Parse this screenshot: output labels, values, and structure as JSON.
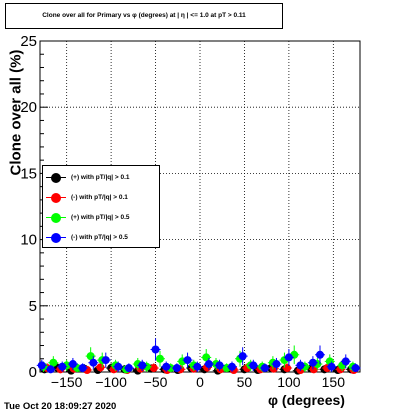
{
  "title": "Clone  over all for Primary vs φ (degrees) at | η | <= 1.0 at pT > 0.11",
  "timestamp": "Tue Oct 20 18:09:27 2020",
  "chart_data": {
    "type": "scatter",
    "xlabel": "φ (degrees)",
    "ylabel": "Clone  over all (%)",
    "xlim": [
      -180,
      180
    ],
    "ylim": [
      0,
      25
    ],
    "xticks": [
      -150,
      -100,
      -50,
      0,
      50,
      100,
      150
    ],
    "yticks": [
      0,
      5,
      10,
      15,
      20,
      25
    ],
    "grid": true,
    "legend_position": "left-middle",
    "series": [
      {
        "name": "(+) with pT/|q| > 0.1",
        "color": "#000000",
        "points": [
          [
            -175,
            0.2
          ],
          [
            -160,
            0.3
          ],
          [
            -145,
            0.1
          ],
          [
            -130,
            0.25
          ],
          [
            -115,
            0.15
          ],
          [
            -100,
            0.3
          ],
          [
            -85,
            0.2
          ],
          [
            -70,
            0.1
          ],
          [
            -55,
            0.25
          ],
          [
            -40,
            0.2
          ],
          [
            -25,
            0.15
          ],
          [
            -10,
            0.3
          ],
          [
            5,
            0.2
          ],
          [
            20,
            0.1
          ],
          [
            35,
            0.25
          ],
          [
            50,
            0.2
          ],
          [
            65,
            0.15
          ],
          [
            80,
            0.3
          ],
          [
            95,
            0.2
          ],
          [
            110,
            0.1
          ],
          [
            125,
            0.25
          ],
          [
            140,
            0.2
          ],
          [
            155,
            0.15
          ],
          [
            170,
            0.2
          ]
        ]
      },
      {
        "name": "(-) with pT/|q| > 0.1",
        "color": "#ff0000",
        "points": [
          [
            -172,
            0.3
          ],
          [
            -157,
            0.2
          ],
          [
            -142,
            0.25
          ],
          [
            -127,
            0.15
          ],
          [
            -112,
            0.35
          ],
          [
            -97,
            0.2
          ],
          [
            -82,
            0.15
          ],
          [
            -67,
            0.25
          ],
          [
            -52,
            0.3
          ],
          [
            -37,
            0.15
          ],
          [
            -22,
            0.2
          ],
          [
            -7,
            0.25
          ],
          [
            8,
            0.35
          ],
          [
            23,
            0.2
          ],
          [
            38,
            0.15
          ],
          [
            53,
            0.3
          ],
          [
            68,
            0.2
          ],
          [
            83,
            0.25
          ],
          [
            98,
            0.3
          ],
          [
            113,
            0.15
          ],
          [
            128,
            0.2
          ],
          [
            143,
            0.3
          ],
          [
            158,
            0.2
          ],
          [
            173,
            0.15
          ]
        ]
      },
      {
        "name": "(+) with pT/|q| > 0.5",
        "color": "#00ff00",
        "points": [
          [
            -176,
            0.4
          ],
          [
            -165,
            0.7
          ],
          [
            -150,
            0.5
          ],
          [
            -138,
            0.3
          ],
          [
            -123,
            1.2
          ],
          [
            -110,
            0.9
          ],
          [
            -95,
            0.5
          ],
          [
            -83,
            0.2
          ],
          [
            -70,
            0.6
          ],
          [
            -60,
            0.4
          ],
          [
            -45,
            1.0
          ],
          [
            -33,
            0.3
          ],
          [
            -20,
            0.8
          ],
          [
            -7,
            0.5
          ],
          [
            7,
            1.1
          ],
          [
            18,
            0.6
          ],
          [
            30,
            0.3
          ],
          [
            45,
            1.0
          ],
          [
            57,
            0.5
          ],
          [
            70,
            0.4
          ],
          [
            82,
            0.7
          ],
          [
            95,
            0.9
          ],
          [
            106,
            1.3
          ],
          [
            118,
            0.4
          ],
          [
            132,
            0.6
          ],
          [
            146,
            0.8
          ],
          [
            160,
            0.5
          ],
          [
            172,
            0.4
          ]
        ]
      },
      {
        "name": "(-) with pT/|q| > 0.5",
        "color": "#0000ff",
        "points": [
          [
            -178,
            0.5
          ],
          [
            -168,
            0.2
          ],
          [
            -155,
            0.4
          ],
          [
            -143,
            0.6
          ],
          [
            -132,
            0.3
          ],
          [
            -120,
            0.7
          ],
          [
            -106,
            0.9
          ],
          [
            -92,
            0.4
          ],
          [
            -80,
            0.3
          ],
          [
            -65,
            0.5
          ],
          [
            -50,
            1.7
          ],
          [
            -38,
            0.4
          ],
          [
            -26,
            0.3
          ],
          [
            -14,
            0.9
          ],
          [
            -3,
            0.4
          ],
          [
            10,
            0.6
          ],
          [
            22,
            0.5
          ],
          [
            36,
            0.4
          ],
          [
            48,
            1.2
          ],
          [
            60,
            0.5
          ],
          [
            73,
            0.3
          ],
          [
            86,
            0.6
          ],
          [
            100,
            1.1
          ],
          [
            113,
            0.5
          ],
          [
            127,
            0.7
          ],
          [
            135,
            1.3
          ],
          [
            148,
            0.4
          ],
          [
            164,
            0.8
          ],
          [
            175,
            0.3
          ]
        ]
      }
    ]
  }
}
